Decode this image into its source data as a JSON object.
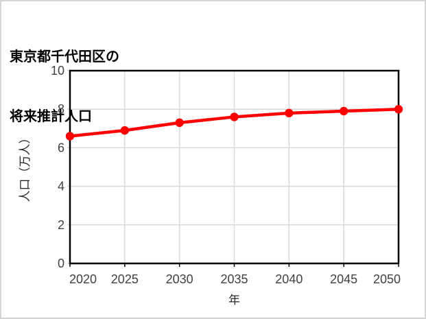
{
  "frame": {
    "background": "#ffffff",
    "border_color": "#d4d4d4"
  },
  "title": {
    "line1": "東京都千代田区の",
    "line2": "将来推計人口",
    "color": "#000000"
  },
  "chart_data": {
    "type": "line",
    "title": "東京都千代田区の将来推計人口",
    "categories": [
      "2020",
      "2025",
      "2030",
      "2035",
      "2040",
      "2045",
      "2050"
    ],
    "values": [
      6.6,
      6.9,
      7.3,
      7.6,
      7.8,
      7.9,
      8.0
    ],
    "xlabel": "年",
    "ylabel": "人口（万人）",
    "ylim": [
      0,
      10
    ],
    "yticks": [
      0,
      2,
      4,
      6,
      8,
      10
    ],
    "grid": true,
    "legend": "none",
    "marker": "circle",
    "line_color": "#ff0000",
    "grid_color": "#d9d9d9",
    "axis_color": "#000000",
    "tick_label_color": "#404040",
    "axis_title_color": "#262626"
  }
}
